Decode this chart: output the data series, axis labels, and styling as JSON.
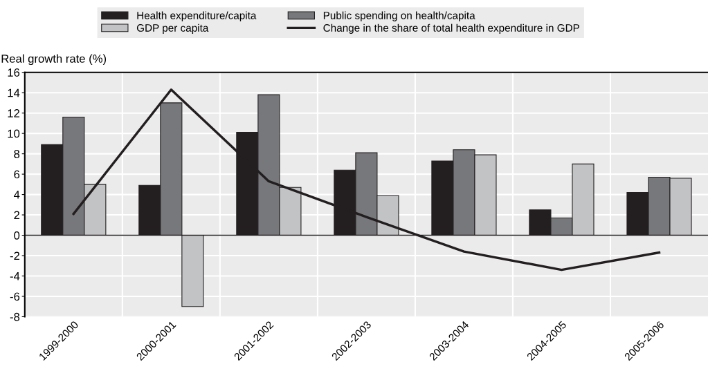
{
  "chart_data": {
    "type": "bar",
    "ylabel": "Real growth rate (%)",
    "categories": [
      "1999-2000",
      "2000-2001",
      "2001-2002",
      "2002-2003",
      "2003-2004",
      "2004-2005",
      "2005-2006"
    ],
    "series": [
      {
        "name": "Health expenditure/capita",
        "color": "#231f20",
        "values": [
          8.9,
          4.9,
          10.1,
          6.4,
          7.3,
          2.5,
          4.2
        ]
      },
      {
        "name": "Public spending on health/capita",
        "color": "#77787b",
        "values": [
          11.6,
          13.0,
          13.8,
          8.1,
          8.4,
          1.7,
          5.7
        ]
      },
      {
        "name": "GDP per capita",
        "color": "#c2c3c5",
        "values": [
          5.0,
          -7.0,
          4.7,
          3.9,
          7.9,
          7.0,
          5.6
        ]
      },
      {
        "name": "Change in the share of total health expenditure in GDP",
        "type": "line",
        "color": "#231f20",
        "values": [
          2.1,
          14.3,
          5.3,
          1.8,
          -1.6,
          -3.4,
          -1.7
        ]
      }
    ],
    "ylim": [
      -8,
      16
    ],
    "yticks": [
      -8,
      -6,
      -4,
      -2,
      0,
      2,
      4,
      6,
      8,
      10,
      12,
      14,
      16
    ],
    "grid": true,
    "legend": "top",
    "line_style": "solid",
    "marker": "none"
  }
}
